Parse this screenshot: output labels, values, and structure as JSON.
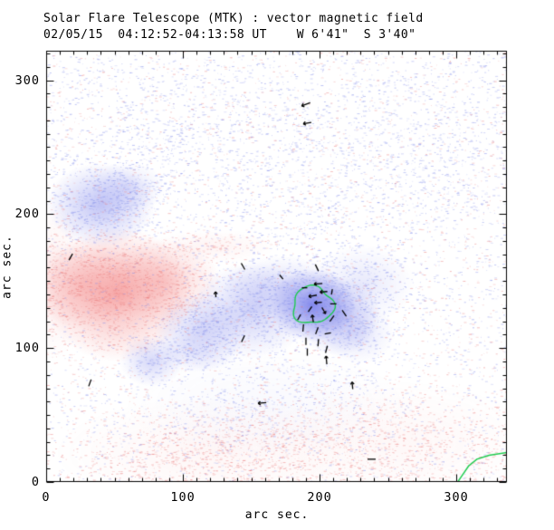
{
  "header": {
    "title": "Solar Flare Telescope (MTK) : vector magnetic field",
    "subtitle": "02/05/15  04:12:52-04:13:58 UT    W 6'41\"  S 3'40\""
  },
  "chart_data": {
    "type": "heatmap",
    "title": "Solar Flare Telescope (MTK) : vector magnetic field",
    "subtitle": "02/05/15  04:12:52-04:13:58 UT    W 6'41\"  S 3'40\"",
    "xlabel": "arc sec.",
    "ylabel": "arc sec.",
    "xlim": [
      0,
      337
    ],
    "ylim": [
      0,
      322
    ],
    "x_ticks": [
      0,
      100,
      200,
      300
    ],
    "y_ticks": [
      0,
      100,
      200,
      300
    ],
    "minor_tick_step": 10,
    "grid": false,
    "legend": "none",
    "colors": {
      "positive_polarity_core": "#6b72e8",
      "negative_polarity_core": "#f06868",
      "speckle_blue": "#7884e8",
      "speckle_red": "#e87878",
      "contour_green": "#1ecb4f",
      "vector_black": "#000000",
      "axis": "#000000",
      "background": "#ffffff"
    },
    "polarity_regions_note": "entries: [color, x_arcsec, y_arcsec, sigma_x, sigma_y, core_opacity, speckle_weight]",
    "polarity_regions": [
      [
        "red",
        52,
        140,
        26,
        24,
        0.5,
        0.85
      ],
      [
        "red",
        86,
        150,
        20,
        15,
        0.3,
        0.7
      ],
      [
        "red",
        28,
        148,
        20,
        16,
        0.28,
        0.6
      ],
      [
        "red",
        122,
        176,
        22,
        6,
        0.08,
        0.4
      ],
      [
        "red",
        5,
        150,
        12,
        28,
        0.1,
        0.5
      ],
      [
        "red",
        120,
        22,
        55,
        20,
        0.06,
        0.45
      ],
      [
        "red",
        255,
        30,
        50,
        22,
        0.05,
        0.4
      ],
      [
        "red",
        168,
        12,
        200,
        18,
        0.0,
        0.22
      ],
      [
        "blue",
        40,
        207,
        19,
        15,
        0.42,
        0.75
      ],
      [
        "blue",
        60,
        220,
        13,
        9,
        0.18,
        0.5
      ],
      [
        "blue",
        113,
        112,
        16,
        14,
        0.3,
        0.65
      ],
      [
        "blue",
        150,
        128,
        21,
        17,
        0.32,
        0.7
      ],
      [
        "blue",
        173,
        146,
        21,
        11,
        0.22,
        0.6
      ],
      [
        "blue",
        195,
        132,
        15,
        13,
        0.8,
        0.85
      ],
      [
        "blue",
        213,
        124,
        15,
        14,
        0.4,
        0.7
      ],
      [
        "blue",
        232,
        148,
        18,
        14,
        0.16,
        0.5
      ],
      [
        "blue",
        228,
        111,
        13,
        11,
        0.18,
        0.5
      ],
      [
        "blue",
        77,
        90,
        11,
        9,
        0.28,
        0.6
      ],
      [
        "blue",
        108,
        96,
        16,
        7,
        0.1,
        0.45
      ],
      [
        "blue",
        160,
        58,
        50,
        20,
        0.04,
        0.3
      ],
      [
        "blue",
        250,
        235,
        80,
        55,
        0.0,
        0.15
      ],
      [
        "blue",
        90,
        265,
        45,
        35,
        0.0,
        0.13
      ],
      [
        "blue",
        168,
        250,
        200,
        60,
        0.0,
        0.1
      ]
    ],
    "noise": {
      "seed": 1337,
      "samples": 26000,
      "base_red": 0.09,
      "base_blue": 0.11
    },
    "contour": {
      "x": 195,
      "y": 132,
      "r_arcsec": 14.5
    },
    "limb_curve": [
      [
        301,
        0
      ],
      [
        305,
        6
      ],
      [
        309,
        12
      ],
      [
        315,
        17
      ],
      [
        324,
        20
      ],
      [
        337,
        22
      ]
    ],
    "vectors_note": "entries: [x_arcsec, y_arcsec, angle_deg, length_px, arrowhead]",
    "vectors": [
      [
        190,
        282,
        200,
        10,
        1
      ],
      [
        191,
        268,
        190,
        9,
        1
      ],
      [
        18,
        168,
        60,
        8,
        0
      ],
      [
        144,
        161,
        -60,
        8,
        0
      ],
      [
        172,
        153,
        -50,
        6,
        0
      ],
      [
        198,
        160,
        -65,
        8,
        0
      ],
      [
        124,
        140,
        95,
        6,
        1
      ],
      [
        199,
        148,
        185,
        9,
        1
      ],
      [
        189,
        145,
        180,
        6,
        0
      ],
      [
        203,
        142,
        185,
        8,
        1
      ],
      [
        209,
        142,
        80,
        6,
        0
      ],
      [
        195,
        139,
        190,
        9,
        1
      ],
      [
        199,
        134,
        185,
        8,
        1
      ],
      [
        210,
        133,
        180,
        7,
        0
      ],
      [
        218,
        126,
        -55,
        8,
        0
      ],
      [
        193,
        129,
        55,
        7,
        0
      ],
      [
        203,
        128,
        -60,
        8,
        1
      ],
      [
        185,
        123,
        60,
        7,
        0
      ],
      [
        195,
        122,
        100,
        8,
        1
      ],
      [
        209,
        122,
        55,
        8,
        0
      ],
      [
        188,
        115,
        85,
        8,
        0
      ],
      [
        198,
        113,
        70,
        8,
        0
      ],
      [
        206,
        111,
        10,
        7,
        0
      ],
      [
        190,
        105,
        90,
        8,
        0
      ],
      [
        199,
        104,
        85,
        8,
        0
      ],
      [
        191,
        97,
        90,
        8,
        0
      ],
      [
        205,
        99,
        75,
        8,
        0
      ],
      [
        205,
        91,
        95,
        9,
        1
      ],
      [
        144,
        107,
        65,
        8,
        0
      ],
      [
        32,
        74,
        70,
        8,
        0
      ],
      [
        158,
        59,
        185,
        9,
        1
      ],
      [
        224,
        72,
        95,
        8,
        1
      ],
      [
        238,
        17,
        0,
        9,
        0
      ]
    ]
  }
}
